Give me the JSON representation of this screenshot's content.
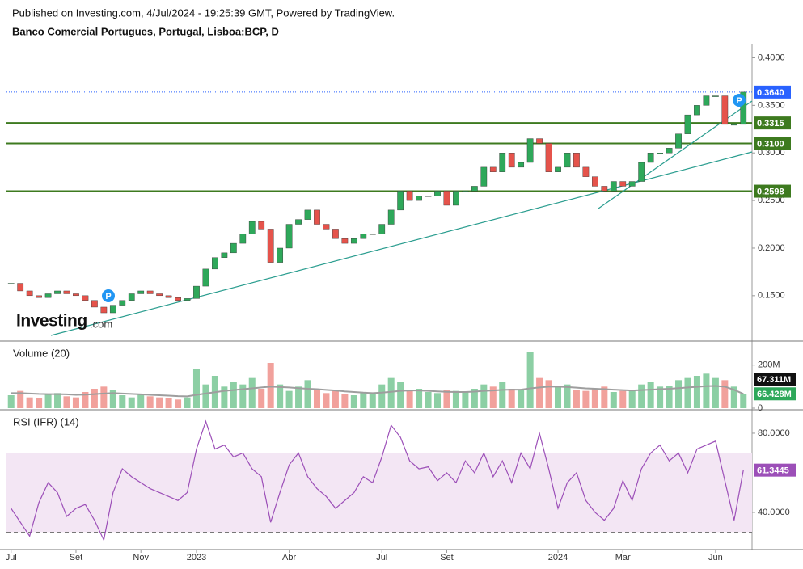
{
  "header": {
    "published": "Published on Investing.com, 4/Jul/2024 - 19:25:39 GMT, Powered by TradingView.",
    "logo": "Investing",
    "logo_suffix": ".com",
    "markers": [
      "P",
      "P"
    ]
  },
  "chart_data": [
    {
      "type": "candlestick",
      "title": "Banco Comercial Portugues, Portugal, Lisboa:BCP, D",
      "values": [
        0.163,
        0.155,
        0.15,
        0.148,
        0.152,
        0.155,
        0.152,
        0.15,
        0.145,
        0.138,
        0.132,
        0.14,
        0.145,
        0.152,
        0.155,
        0.152,
        0.15,
        0.148,
        0.145,
        0.147,
        0.16,
        0.178,
        0.19,
        0.195,
        0.205,
        0.215,
        0.228,
        0.22,
        0.185,
        0.2,
        0.225,
        0.23,
        0.24,
        0.225,
        0.22,
        0.21,
        0.205,
        0.21,
        0.215,
        0.215,
        0.225,
        0.24,
        0.26,
        0.25,
        0.255,
        0.255,
        0.26,
        0.245,
        0.26,
        0.26,
        0.265,
        0.285,
        0.28,
        0.3,
        0.285,
        0.29,
        0.315,
        0.31,
        0.28,
        0.285,
        0.3,
        0.285,
        0.275,
        0.265,
        0.26,
        0.27,
        0.265,
        0.27,
        0.29,
        0.3,
        0.3,
        0.305,
        0.32,
        0.34,
        0.35,
        0.36,
        0.36,
        0.33,
        0.33,
        0.364
      ],
      "last_label": "0.3640",
      "last_color": "#2962ff",
      "up_color": "#2ea85a",
      "down_color": "#e5534b",
      "levels": [
        {
          "value": 0.3315,
          "label": "0.3315"
        },
        {
          "value": 0.31,
          "label": "0.3100"
        },
        {
          "value": 0.2598,
          "label": "0.2598"
        }
      ],
      "level_color": "#3d7a1f",
      "ylim": [
        0.104,
        0.414
      ],
      "yticks": [
        {
          "value": 0.4,
          "label": "0.4000"
        },
        {
          "value": 0.35,
          "label": "0.3500"
        },
        {
          "value": 0.3,
          "label": "0.3000"
        },
        {
          "value": 0.25,
          "label": "0.2500"
        },
        {
          "value": 0.2,
          "label": "0.2000"
        },
        {
          "value": 0.15,
          "label": "0.1500"
        }
      ]
    },
    {
      "type": "bar",
      "title": "Volume (20)",
      "values": [
        60,
        80,
        50,
        45,
        65,
        70,
        55,
        50,
        75,
        90,
        100,
        85,
        60,
        50,
        65,
        55,
        50,
        45,
        40,
        50,
        180,
        110,
        150,
        100,
        120,
        110,
        140,
        90,
        210,
        110,
        80,
        100,
        130,
        90,
        70,
        80,
        65,
        60,
        75,
        70,
        110,
        140,
        120,
        80,
        90,
        75,
        70,
        85,
        80,
        75,
        90,
        110,
        100,
        120,
        90,
        85,
        260,
        140,
        130,
        100,
        110,
        85,
        80,
        90,
        100,
        75,
        80,
        85,
        110,
        120,
        100,
        105,
        130,
        140,
        150,
        160,
        140,
        130,
        100,
        67.311
      ],
      "ma_values": [
        70,
        70,
        68,
        66,
        65,
        65,
        64,
        62,
        63,
        65,
        68,
        70,
        68,
        66,
        64,
        62,
        60,
        58,
        56,
        55,
        62,
        68,
        74,
        80,
        84,
        88,
        92,
        96,
        100,
        98,
        96,
        93,
        90,
        88,
        85,
        82,
        78,
        75,
        72,
        70,
        72,
        76,
        80,
        82,
        82,
        80,
        78,
        76,
        75,
        75,
        77,
        80,
        82,
        85,
        86,
        86,
        92,
        96,
        100,
        100,
        98,
        95,
        92,
        90,
        88,
        86,
        84,
        82,
        84,
        86,
        88,
        90,
        93,
        96,
        99,
        102,
        103,
        100,
        85,
        66.428
      ],
      "last_label": "67.311M",
      "ma_last_label": "66.428M",
      "ma_color": "#9e9e9e",
      "last_color": "#111111",
      "ma_last_color": "#2ea85a",
      "ylim": [
        0,
        300
      ],
      "yticks": [
        0,
        {
          "value": 200,
          "label": "200M"
        }
      ]
    },
    {
      "type": "line",
      "title": "RSI (IFR) (14)",
      "categories": [
        "Jul",
        null,
        null,
        null,
        null,
        null,
        null,
        "Set",
        null,
        null,
        null,
        null,
        null,
        null,
        "Nov",
        null,
        null,
        null,
        null,
        null,
        "2023",
        null,
        null,
        null,
        null,
        null,
        null,
        null,
        null,
        null,
        "Abr",
        null,
        null,
        null,
        null,
        null,
        null,
        null,
        null,
        null,
        "Jul",
        null,
        null,
        null,
        null,
        null,
        null,
        "Set",
        null,
        null,
        null,
        null,
        null,
        null,
        null,
        null,
        null,
        null,
        null,
        "2024",
        null,
        null,
        null,
        null,
        null,
        null,
        "Mar",
        null,
        null,
        null,
        null,
        null,
        null,
        null,
        null,
        null,
        "Jun",
        null,
        null,
        null
      ],
      "values": [
        42,
        35,
        28,
        45,
        55,
        50,
        38,
        42,
        44,
        36,
        26,
        50,
        62,
        58,
        55,
        52,
        50,
        48,
        46,
        50,
        72,
        86,
        72,
        74,
        68,
        70,
        62,
        58,
        35,
        50,
        64,
        70,
        58,
        52,
        48,
        42,
        46,
        50,
        58,
        55,
        68,
        84,
        78,
        66,
        62,
        63,
        56,
        60,
        55,
        66,
        60,
        70,
        58,
        66,
        55,
        70,
        62,
        80,
        62,
        42,
        55,
        60,
        46,
        40,
        36,
        42,
        56,
        46,
        62,
        70,
        74,
        66,
        70,
        60,
        72,
        74,
        76,
        56,
        36,
        61.3445
      ],
      "last_label": "61.3445",
      "color": "#9c4fb8",
      "band_fill": "#f3e6f4",
      "bands": [
        30,
        70
      ],
      "ylim": [
        21.2,
        90.6
      ],
      "yticks": [
        {
          "value": 80,
          "label": "80.0000"
        },
        {
          "value": 40,
          "label": "40.0000"
        }
      ]
    }
  ]
}
